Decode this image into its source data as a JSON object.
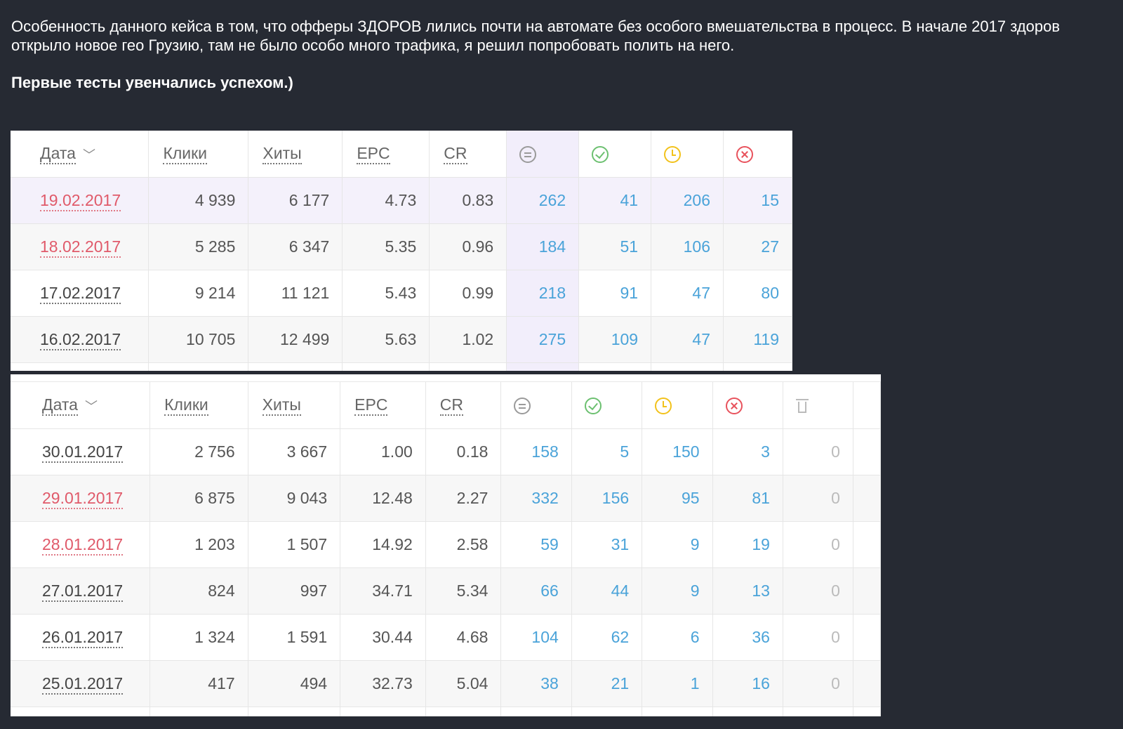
{
  "post": {
    "paragraph": "Особенность данного кейса в том, что офферы ЗДОРОВ лились почти на автомате без особого вмешательства в процесс. В начале 2017 здоров открыло новое гео Грузию, там не было особо много трафика, я решил попробовать полить на него.",
    "bold": "Первые тесты увенчались успехом.)"
  },
  "headers": {
    "date": "Дата",
    "clicks": "Клики",
    "hits": "Хиты",
    "epc": "EPC",
    "cr": "CR",
    "icons": [
      "all-icon",
      "approved-icon",
      "hold-icon",
      "rejected-icon",
      "trash-icon"
    ]
  },
  "colors": {
    "background": "#262a33",
    "date_red": "#e05a6a",
    "conv_blue": "#4aa3d9",
    "highlight": "#f2eefb"
  },
  "table1": {
    "rows": [
      {
        "date": "19.02.2017",
        "clicks": "4 939",
        "hits": "6 177",
        "epc": "4.73",
        "cr": "0.83",
        "all": "262",
        "ok": "41",
        "hold": "206",
        "rej": "15"
      },
      {
        "date": "18.02.2017",
        "clicks": "5 285",
        "hits": "6 347",
        "epc": "5.35",
        "cr": "0.96",
        "all": "184",
        "ok": "51",
        "hold": "106",
        "rej": "27"
      },
      {
        "date": "17.02.2017",
        "clicks": "9 214",
        "hits": "11 121",
        "epc": "5.43",
        "cr": "0.99",
        "all": "218",
        "ok": "91",
        "hold": "47",
        "rej": "80"
      },
      {
        "date": "16.02.2017",
        "clicks": "10 705",
        "hits": "12 499",
        "epc": "5.63",
        "cr": "1.02",
        "all": "275",
        "ok": "109",
        "hold": "47",
        "rej": "119"
      }
    ]
  },
  "table2": {
    "rows": [
      {
        "date": "30.01.2017",
        "clicks": "2 756",
        "hits": "3 667",
        "epc": "1.00",
        "cr": "0.18",
        "all": "158",
        "ok": "5",
        "hold": "150",
        "rej": "3",
        "trash": "0"
      },
      {
        "date": "29.01.2017",
        "clicks": "6 875",
        "hits": "9 043",
        "epc": "12.48",
        "cr": "2.27",
        "all": "332",
        "ok": "156",
        "hold": "95",
        "rej": "81",
        "trash": "0"
      },
      {
        "date": "28.01.2017",
        "clicks": "1 203",
        "hits": "1 507",
        "epc": "14.92",
        "cr": "2.58",
        "all": "59",
        "ok": "31",
        "hold": "9",
        "rej": "19",
        "trash": "0"
      },
      {
        "date": "27.01.2017",
        "clicks": "824",
        "hits": "997",
        "epc": "34.71",
        "cr": "5.34",
        "all": "66",
        "ok": "44",
        "hold": "9",
        "rej": "13",
        "trash": "0"
      },
      {
        "date": "26.01.2017",
        "clicks": "1 324",
        "hits": "1 591",
        "epc": "30.44",
        "cr": "4.68",
        "all": "104",
        "ok": "62",
        "hold": "6",
        "rej": "36",
        "trash": "0"
      },
      {
        "date": "25.01.2017",
        "clicks": "417",
        "hits": "494",
        "epc": "32.73",
        "cr": "5.04",
        "all": "38",
        "ok": "21",
        "hold": "1",
        "rej": "16",
        "trash": "0"
      }
    ]
  }
}
